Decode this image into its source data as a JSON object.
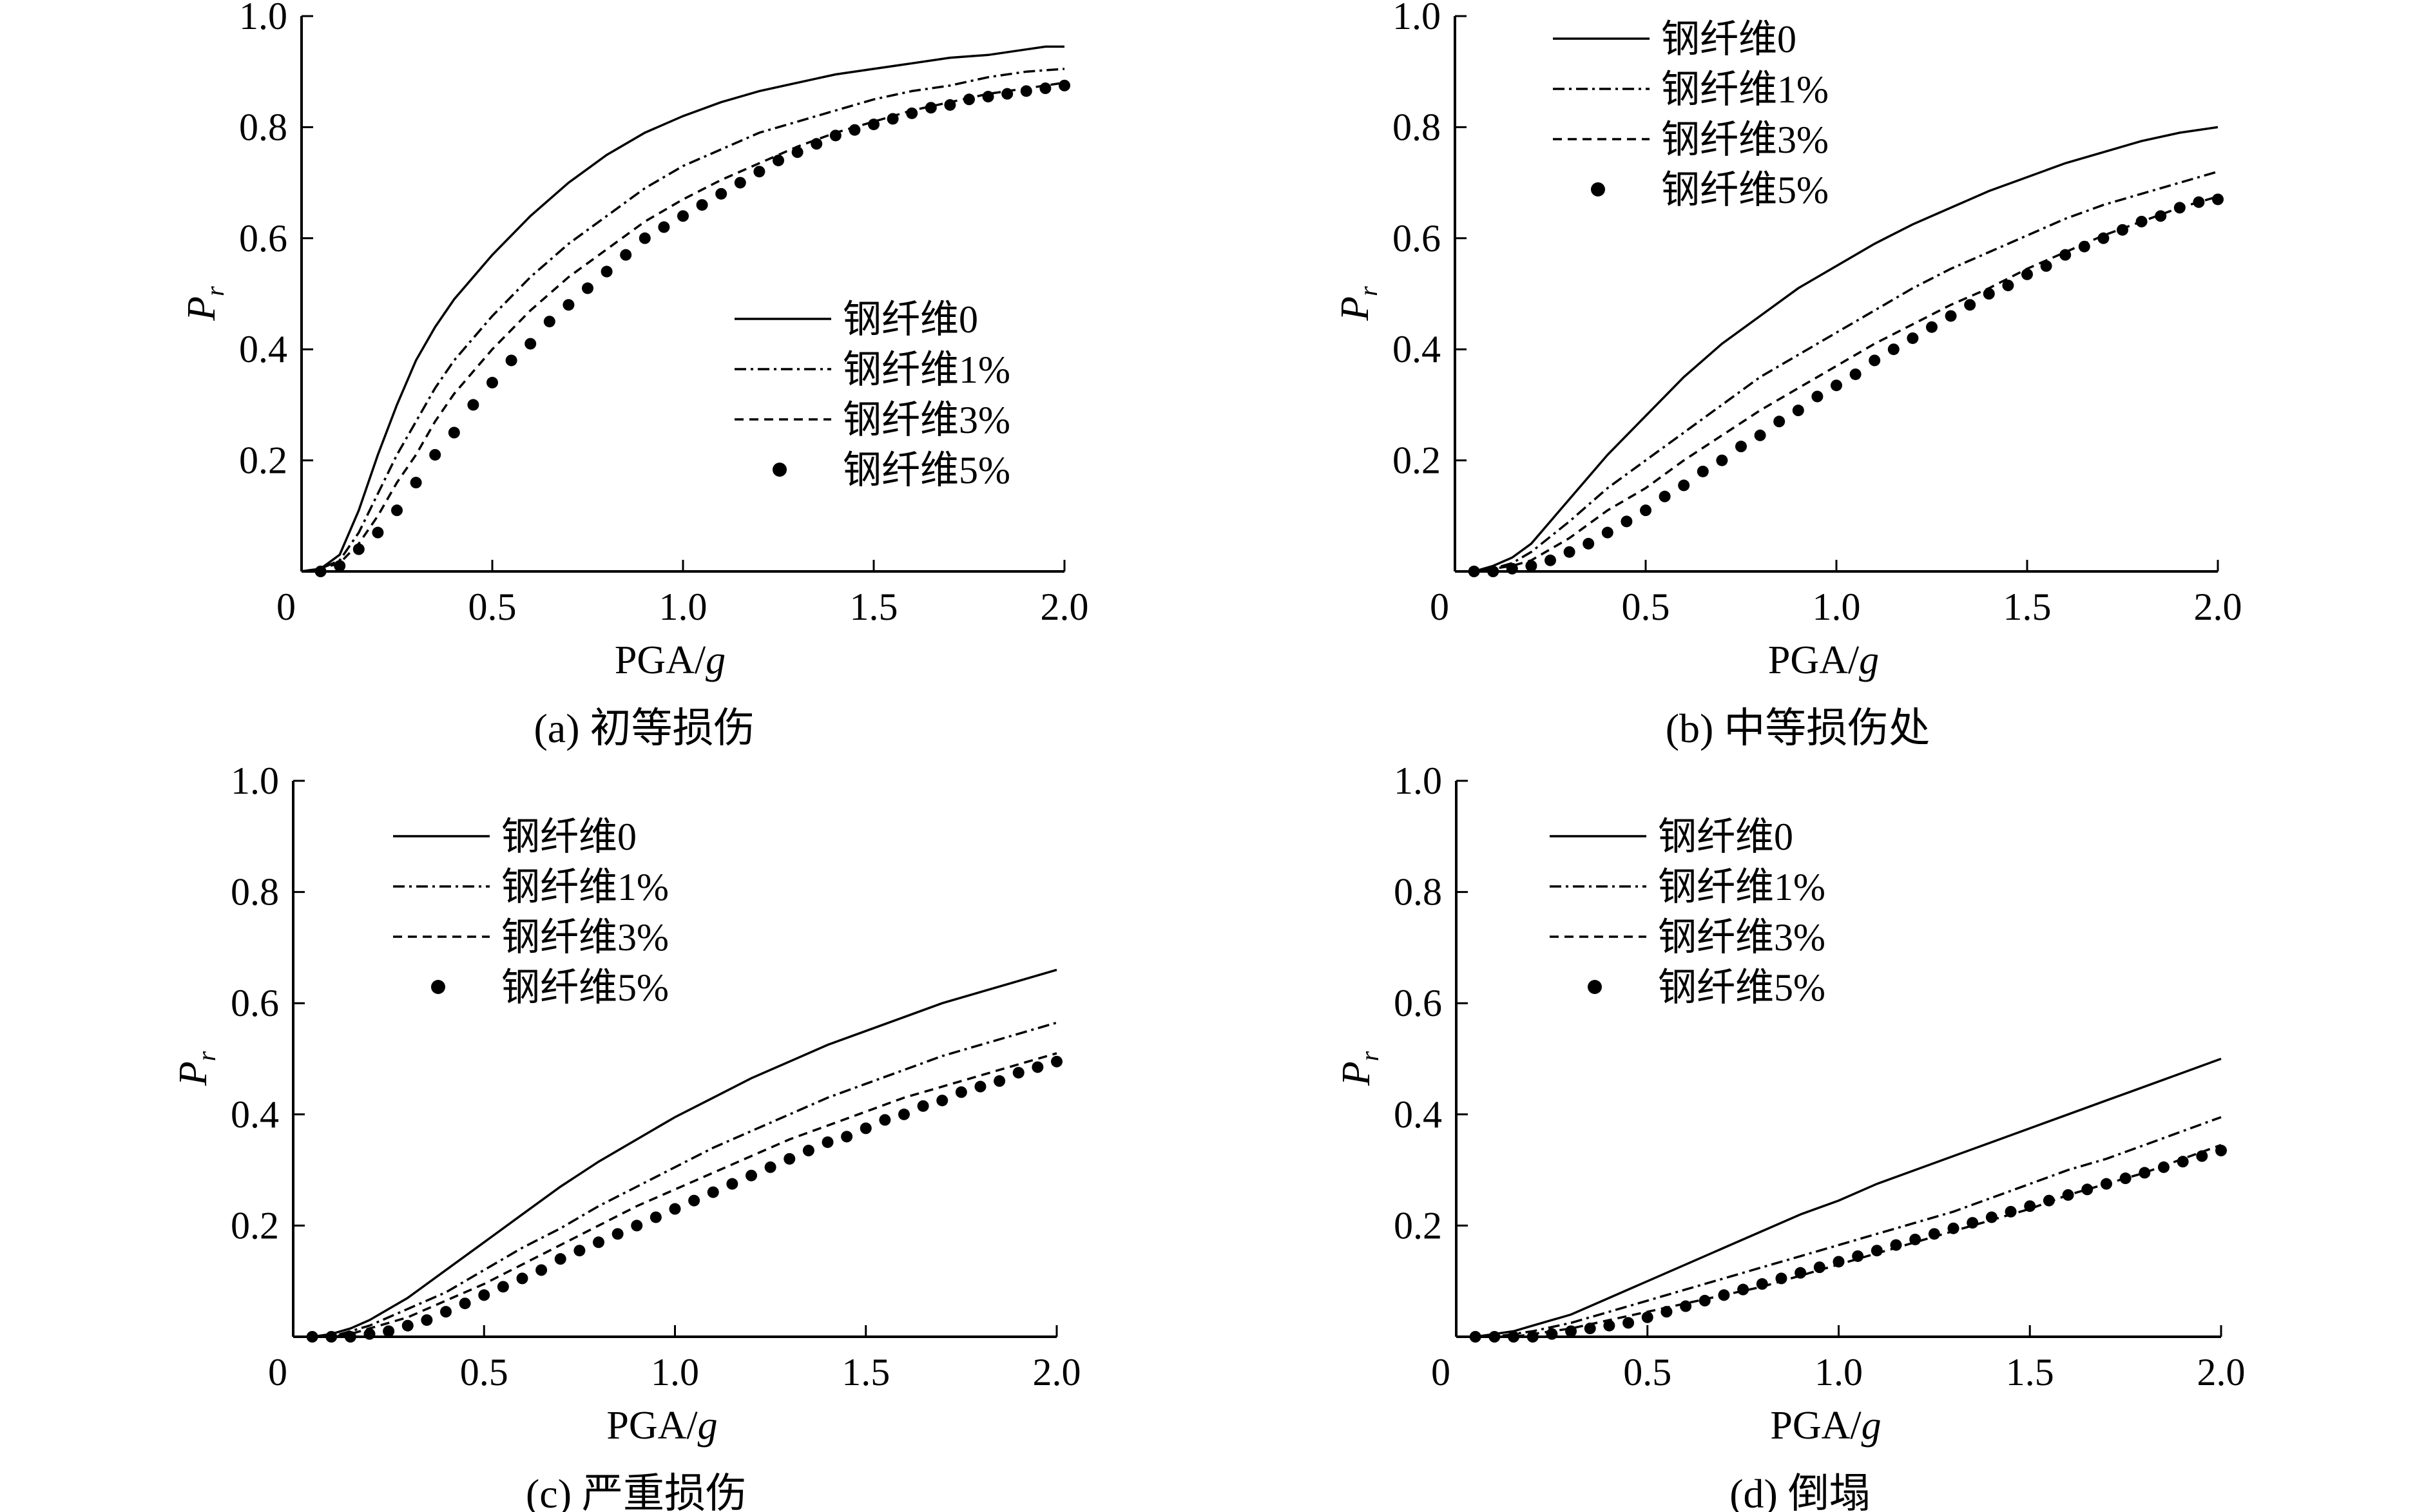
{
  "figure": {
    "panels_count": 4
  },
  "chart_data": [
    {
      "id": "a",
      "type": "line",
      "caption": "(a) 初等损伤",
      "xlabel": "PGA/g",
      "ylabel": "Pr",
      "xlim": [
        0,
        2.0
      ],
      "ylim": [
        0,
        1.0
      ],
      "x_ticks": [
        "0",
        "0.5",
        "1.0",
        "1.5",
        "2.0"
      ],
      "y_ticks": [
        "0.2",
        "0.4",
        "0.6",
        "0.8",
        "1.0"
      ],
      "legend_position": "center-right",
      "series": [
        {
          "name": "钢纤维0",
          "style": "solid",
          "x": [
            0.05,
            0.1,
            0.15,
            0.2,
            0.25,
            0.3,
            0.35,
            0.4,
            0.5,
            0.6,
            0.7,
            0.8,
            0.9,
            1.0,
            1.1,
            1.2,
            1.3,
            1.4,
            1.5,
            1.6,
            1.7,
            1.8,
            1.9,
            1.95,
            2.0
          ],
          "values": [
            0.005,
            0.03,
            0.11,
            0.21,
            0.3,
            0.38,
            0.44,
            0.49,
            0.57,
            0.64,
            0.7,
            0.75,
            0.79,
            0.82,
            0.845,
            0.865,
            0.88,
            0.895,
            0.905,
            0.915,
            0.925,
            0.93,
            0.94,
            0.945,
            0.945
          ]
        },
        {
          "name": "钢纤维1%",
          "style": "dashdot",
          "x": [
            0.05,
            0.1,
            0.15,
            0.2,
            0.25,
            0.3,
            0.35,
            0.4,
            0.5,
            0.6,
            0.7,
            0.8,
            0.9,
            1.0,
            1.1,
            1.2,
            1.3,
            1.4,
            1.5,
            1.6,
            1.7,
            1.8,
            1.9,
            2.0
          ],
          "values": [
            0.005,
            0.02,
            0.07,
            0.14,
            0.21,
            0.27,
            0.33,
            0.38,
            0.46,
            0.53,
            0.59,
            0.64,
            0.69,
            0.73,
            0.76,
            0.79,
            0.81,
            0.83,
            0.85,
            0.865,
            0.875,
            0.89,
            0.9,
            0.905
          ]
        },
        {
          "name": "钢纤维3%",
          "style": "dashed",
          "x": [
            0.05,
            0.1,
            0.15,
            0.2,
            0.25,
            0.3,
            0.35,
            0.4,
            0.5,
            0.6,
            0.7,
            0.8,
            0.9,
            1.0,
            1.1,
            1.2,
            1.3,
            1.4,
            1.5,
            1.6,
            1.7,
            1.8,
            1.9,
            2.0
          ],
          "values": [
            0.005,
            0.015,
            0.05,
            0.1,
            0.16,
            0.21,
            0.27,
            0.32,
            0.4,
            0.47,
            0.53,
            0.58,
            0.63,
            0.67,
            0.705,
            0.735,
            0.765,
            0.79,
            0.81,
            0.83,
            0.845,
            0.86,
            0.87,
            0.88
          ]
        },
        {
          "name": "钢纤维5%",
          "style": "dots",
          "x": [
            0.05,
            0.1,
            0.15,
            0.2,
            0.25,
            0.3,
            0.35,
            0.4,
            0.45,
            0.5,
            0.55,
            0.6,
            0.65,
            0.7,
            0.75,
            0.8,
            0.85,
            0.9,
            0.95,
            1.0,
            1.05,
            1.1,
            1.15,
            1.2,
            1.25,
            1.3,
            1.35,
            1.4,
            1.45,
            1.5,
            1.55,
            1.6,
            1.65,
            1.7,
            1.75,
            1.8,
            1.85,
            1.9,
            1.95,
            2.0
          ],
          "values": [
            0.0,
            0.01,
            0.04,
            0.07,
            0.11,
            0.16,
            0.21,
            0.25,
            0.3,
            0.34,
            0.38,
            0.41,
            0.45,
            0.48,
            0.51,
            0.54,
            0.57,
            0.6,
            0.62,
            0.64,
            0.66,
            0.68,
            0.7,
            0.72,
            0.74,
            0.755,
            0.77,
            0.785,
            0.795,
            0.805,
            0.815,
            0.825,
            0.835,
            0.84,
            0.85,
            0.855,
            0.86,
            0.865,
            0.87,
            0.875
          ]
        }
      ]
    },
    {
      "id": "b",
      "type": "line",
      "caption": "(b) 中等损伤处",
      "xlabel": "PGA/g",
      "ylabel": "Pr",
      "xlim": [
        0,
        2.0
      ],
      "ylim": [
        0,
        1.0
      ],
      "x_ticks": [
        "0",
        "0.5",
        "1.0",
        "1.5",
        "2.0"
      ],
      "y_ticks": [
        "0.2",
        "0.4",
        "0.6",
        "0.8",
        "1.0"
      ],
      "legend_position": "top-left",
      "series": [
        {
          "name": "钢纤维0",
          "style": "solid",
          "x": [
            0.05,
            0.1,
            0.15,
            0.2,
            0.3,
            0.4,
            0.5,
            0.6,
            0.7,
            0.8,
            0.9,
            1.0,
            1.1,
            1.2,
            1.3,
            1.4,
            1.5,
            1.6,
            1.7,
            1.8,
            1.9,
            2.0
          ],
          "values": [
            0.0,
            0.01,
            0.025,
            0.05,
            0.13,
            0.21,
            0.28,
            0.35,
            0.41,
            0.46,
            0.51,
            0.55,
            0.59,
            0.625,
            0.655,
            0.685,
            0.71,
            0.735,
            0.755,
            0.775,
            0.79,
            0.8
          ]
        },
        {
          "name": "钢纤维1%",
          "style": "dashdot",
          "x": [
            0.05,
            0.1,
            0.15,
            0.2,
            0.3,
            0.4,
            0.5,
            0.6,
            0.7,
            0.8,
            0.9,
            1.0,
            1.1,
            1.2,
            1.3,
            1.4,
            1.5,
            1.6,
            1.7,
            1.8,
            1.9,
            2.0
          ],
          "values": [
            0.0,
            0.005,
            0.015,
            0.035,
            0.09,
            0.15,
            0.2,
            0.25,
            0.3,
            0.35,
            0.39,
            0.43,
            0.47,
            0.51,
            0.545,
            0.575,
            0.605,
            0.635,
            0.66,
            0.68,
            0.7,
            0.72
          ]
        },
        {
          "name": "钢纤维3%",
          "style": "dashed",
          "x": [
            0.05,
            0.1,
            0.15,
            0.2,
            0.3,
            0.4,
            0.5,
            0.6,
            0.7,
            0.8,
            0.9,
            1.0,
            1.1,
            1.2,
            1.3,
            1.4,
            1.5,
            1.6,
            1.7,
            1.8,
            1.9,
            2.0
          ],
          "values": [
            0.0,
            0.005,
            0.01,
            0.02,
            0.06,
            0.11,
            0.15,
            0.2,
            0.245,
            0.29,
            0.33,
            0.37,
            0.41,
            0.445,
            0.48,
            0.51,
            0.545,
            0.575,
            0.605,
            0.63,
            0.655,
            0.675
          ]
        },
        {
          "name": "钢纤维5%",
          "style": "dots",
          "x": [
            0.05,
            0.1,
            0.15,
            0.2,
            0.25,
            0.3,
            0.35,
            0.4,
            0.45,
            0.5,
            0.55,
            0.6,
            0.65,
            0.7,
            0.75,
            0.8,
            0.85,
            0.9,
            0.95,
            1.0,
            1.05,
            1.1,
            1.15,
            1.2,
            1.25,
            1.3,
            1.35,
            1.4,
            1.45,
            1.5,
            1.55,
            1.6,
            1.65,
            1.7,
            1.75,
            1.8,
            1.85,
            1.9,
            1.95,
            2.0
          ],
          "values": [
            0.0,
            0.0,
            0.005,
            0.01,
            0.02,
            0.035,
            0.05,
            0.07,
            0.09,
            0.11,
            0.135,
            0.155,
            0.18,
            0.2,
            0.225,
            0.245,
            0.27,
            0.29,
            0.315,
            0.335,
            0.355,
            0.38,
            0.4,
            0.42,
            0.44,
            0.46,
            0.48,
            0.5,
            0.515,
            0.535,
            0.55,
            0.57,
            0.585,
            0.6,
            0.615,
            0.63,
            0.64,
            0.655,
            0.665,
            0.67
          ]
        }
      ]
    },
    {
      "id": "c",
      "type": "line",
      "caption": "(c) 严重损伤",
      "xlabel": "PGA/g",
      "ylabel": "Pr",
      "xlim": [
        0,
        2.0
      ],
      "ylim": [
        0,
        1.0
      ],
      "x_ticks": [
        "0",
        "0.5",
        "1.0",
        "1.5",
        "2.0"
      ],
      "y_ticks": [
        "0.2",
        "0.4",
        "0.6",
        "0.8",
        "1.0"
      ],
      "legend_position": "top-left",
      "series": [
        {
          "name": "钢纤维0",
          "style": "solid",
          "x": [
            0.05,
            0.1,
            0.15,
            0.2,
            0.3,
            0.4,
            0.5,
            0.6,
            0.7,
            0.8,
            0.9,
            1.0,
            1.1,
            1.2,
            1.3,
            1.4,
            1.5,
            1.6,
            1.7,
            1.8,
            1.9,
            2.0
          ],
          "values": [
            0.0,
            0.005,
            0.015,
            0.03,
            0.07,
            0.12,
            0.17,
            0.22,
            0.27,
            0.315,
            0.355,
            0.395,
            0.43,
            0.465,
            0.495,
            0.525,
            0.55,
            0.575,
            0.6,
            0.62,
            0.64,
            0.66
          ]
        },
        {
          "name": "钢纤维1%",
          "style": "dashdot",
          "x": [
            0.05,
            0.1,
            0.15,
            0.2,
            0.3,
            0.4,
            0.5,
            0.6,
            0.7,
            0.8,
            0.9,
            1.0,
            1.1,
            1.2,
            1.3,
            1.4,
            1.5,
            1.6,
            1.7,
            1.8,
            1.9,
            2.0
          ],
          "values": [
            0.0,
            0.0,
            0.01,
            0.02,
            0.05,
            0.08,
            0.12,
            0.16,
            0.195,
            0.235,
            0.27,
            0.305,
            0.34,
            0.37,
            0.4,
            0.43,
            0.455,
            0.48,
            0.505,
            0.525,
            0.545,
            0.565
          ]
        },
        {
          "name": "钢纤维3%",
          "style": "dashed",
          "x": [
            0.05,
            0.1,
            0.15,
            0.2,
            0.3,
            0.4,
            0.5,
            0.6,
            0.7,
            0.8,
            0.9,
            1.0,
            1.1,
            1.2,
            1.3,
            1.4,
            1.5,
            1.6,
            1.7,
            1.8,
            1.9,
            2.0
          ],
          "values": [
            0.0,
            0.0,
            0.005,
            0.015,
            0.035,
            0.065,
            0.095,
            0.13,
            0.165,
            0.2,
            0.235,
            0.265,
            0.295,
            0.325,
            0.355,
            0.38,
            0.405,
            0.43,
            0.45,
            0.47,
            0.49,
            0.51
          ]
        },
        {
          "name": "钢纤维5%",
          "style": "dots",
          "x": [
            0.05,
            0.1,
            0.15,
            0.2,
            0.25,
            0.3,
            0.35,
            0.4,
            0.45,
            0.5,
            0.55,
            0.6,
            0.65,
            0.7,
            0.75,
            0.8,
            0.85,
            0.9,
            0.95,
            1.0,
            1.05,
            1.1,
            1.15,
            1.2,
            1.25,
            1.3,
            1.35,
            1.4,
            1.45,
            1.5,
            1.55,
            1.6,
            1.65,
            1.7,
            1.75,
            1.8,
            1.85,
            1.9,
            1.95,
            2.0
          ],
          "values": [
            0.0,
            0.0,
            0.0,
            0.005,
            0.01,
            0.02,
            0.03,
            0.045,
            0.06,
            0.075,
            0.09,
            0.105,
            0.12,
            0.14,
            0.155,
            0.17,
            0.185,
            0.2,
            0.215,
            0.23,
            0.245,
            0.26,
            0.275,
            0.29,
            0.305,
            0.32,
            0.335,
            0.35,
            0.36,
            0.375,
            0.39,
            0.4,
            0.415,
            0.425,
            0.44,
            0.45,
            0.46,
            0.475,
            0.485,
            0.495
          ]
        }
      ]
    },
    {
      "id": "d",
      "type": "line",
      "caption": "(d) 倒塌",
      "xlabel": "PGA/g",
      "ylabel": "Pr",
      "xlim": [
        0,
        2.0
      ],
      "ylim": [
        0,
        1.0
      ],
      "x_ticks": [
        "0",
        "0.5",
        "1.0",
        "1.5",
        "2.0"
      ],
      "y_ticks": [
        "0.2",
        "0.4",
        "0.6",
        "0.8",
        "1.0"
      ],
      "legend_position": "top-left",
      "series": [
        {
          "name": "钢纤维0",
          "style": "solid",
          "x": [
            0.05,
            0.1,
            0.15,
            0.2,
            0.3,
            0.4,
            0.5,
            0.6,
            0.7,
            0.8,
            0.9,
            1.0,
            1.1,
            1.2,
            1.3,
            1.4,
            1.5,
            1.6,
            1.7,
            1.8,
            1.9,
            2.0
          ],
          "values": [
            0.0,
            0.005,
            0.01,
            0.02,
            0.04,
            0.07,
            0.1,
            0.13,
            0.16,
            0.19,
            0.22,
            0.245,
            0.275,
            0.3,
            0.325,
            0.35,
            0.375,
            0.4,
            0.425,
            0.45,
            0.475,
            0.5
          ]
        },
        {
          "name": "钢纤维1%",
          "style": "dashdot",
          "x": [
            0.05,
            0.1,
            0.15,
            0.2,
            0.3,
            0.4,
            0.5,
            0.6,
            0.7,
            0.8,
            0.9,
            1.0,
            1.1,
            1.2,
            1.3,
            1.4,
            1.5,
            1.6,
            1.7,
            1.8,
            1.9,
            2.0
          ],
          "values": [
            0.0,
            0.0,
            0.005,
            0.01,
            0.025,
            0.045,
            0.065,
            0.085,
            0.105,
            0.125,
            0.145,
            0.165,
            0.185,
            0.205,
            0.225,
            0.25,
            0.275,
            0.3,
            0.32,
            0.345,
            0.37,
            0.395
          ]
        },
        {
          "name": "钢纤维3%",
          "style": "dashed",
          "x": [
            0.05,
            0.1,
            0.15,
            0.2,
            0.3,
            0.4,
            0.5,
            0.6,
            0.7,
            0.8,
            0.9,
            1.0,
            1.1,
            1.2,
            1.3,
            1.4,
            1.5,
            1.6,
            1.7,
            1.8,
            1.9,
            2.0
          ],
          "values": [
            0.0,
            0.0,
            0.0,
            0.005,
            0.015,
            0.03,
            0.045,
            0.06,
            0.075,
            0.09,
            0.11,
            0.13,
            0.15,
            0.17,
            0.19,
            0.21,
            0.23,
            0.255,
            0.275,
            0.295,
            0.32,
            0.345
          ]
        },
        {
          "name": "钢纤维5%",
          "style": "dots",
          "x": [
            0.05,
            0.1,
            0.15,
            0.2,
            0.25,
            0.3,
            0.35,
            0.4,
            0.45,
            0.5,
            0.55,
            0.6,
            0.65,
            0.7,
            0.75,
            0.8,
            0.85,
            0.9,
            0.95,
            1.0,
            1.05,
            1.1,
            1.15,
            1.2,
            1.25,
            1.3,
            1.35,
            1.4,
            1.45,
            1.5,
            1.55,
            1.6,
            1.65,
            1.7,
            1.75,
            1.8,
            1.85,
            1.9,
            1.95,
            2.0
          ],
          "values": [
            0.0,
            0.0,
            0.0,
            0.0,
            0.005,
            0.01,
            0.015,
            0.02,
            0.025,
            0.035,
            0.045,
            0.055,
            0.065,
            0.075,
            0.085,
            0.095,
            0.105,
            0.115,
            0.125,
            0.135,
            0.145,
            0.155,
            0.165,
            0.175,
            0.185,
            0.195,
            0.205,
            0.215,
            0.225,
            0.235,
            0.245,
            0.255,
            0.265,
            0.275,
            0.285,
            0.295,
            0.305,
            0.315,
            0.325,
            0.335
          ]
        }
      ]
    }
  ]
}
